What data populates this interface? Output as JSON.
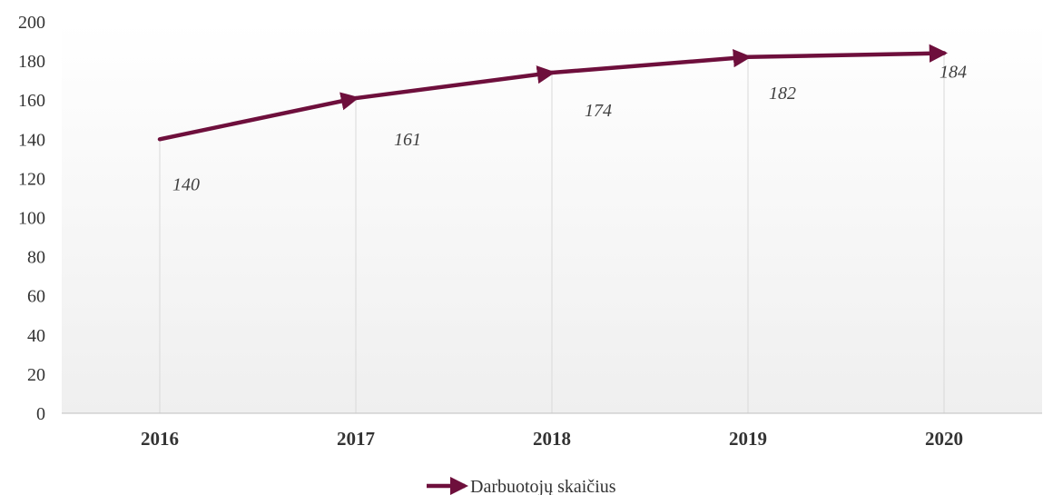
{
  "chart_data": {
    "type": "line",
    "categories": [
      "2016",
      "2017",
      "2018",
      "2019",
      "2020"
    ],
    "series": [
      {
        "name": "Darbuotojų skaičius",
        "values": [
          140,
          161,
          174,
          182,
          184
        ]
      }
    ],
    "ylim": [
      0,
      200
    ],
    "yticks": [
      0,
      20,
      40,
      60,
      80,
      100,
      120,
      140,
      160,
      180,
      200
    ],
    "data_labels": [
      "140",
      "161",
      "174",
      "182",
      "184"
    ],
    "grid": "vertical",
    "legend_position": "bottom",
    "title": "",
    "xlabel": "",
    "ylabel": ""
  },
  "colors": {
    "series_line": "#6e0f3c",
    "grid": "#d9d9d9",
    "axis": "#bfbfbf",
    "plot_gradient_top": "#ffffff",
    "plot_gradient_bottom": "#efefef"
  }
}
